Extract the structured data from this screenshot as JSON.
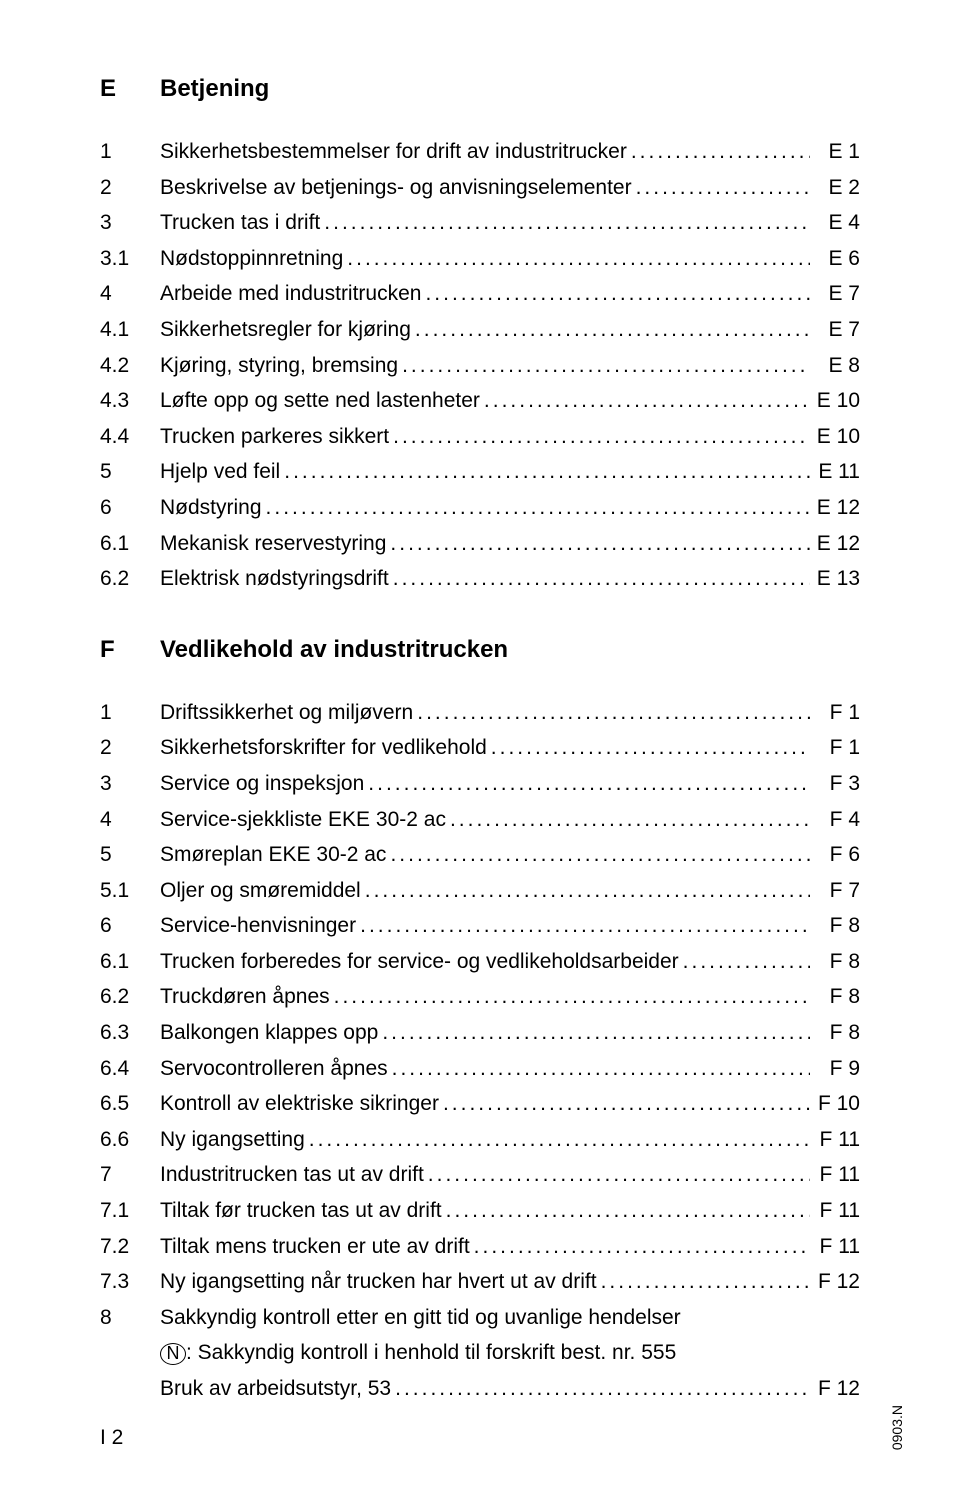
{
  "sections": [
    {
      "letter": "E",
      "title": "Betjening",
      "items": [
        {
          "num": "1",
          "text": "Sikkerhetsbestemmelser for drift av industritrucker",
          "page": "E 1"
        },
        {
          "num": "2",
          "text": "Beskrivelse av betjenings- og anvisningselementer",
          "page": "E 2"
        },
        {
          "num": "3",
          "text": "Trucken tas i drift",
          "page": "E 4"
        },
        {
          "num": "3.1",
          "text": "Nødstoppinnretning",
          "page": "E 6"
        },
        {
          "num": "4",
          "text": "Arbeide med industritrucken",
          "page": "E 7"
        },
        {
          "num": "4.1",
          "text": "Sikkerhetsregler for kjøring",
          "page": "E 7"
        },
        {
          "num": "4.2",
          "text": "Kjøring, styring, bremsing",
          "page": "E 8"
        },
        {
          "num": "4.3",
          "text": "Løfte opp og sette ned lastenheter",
          "page": "E 10"
        },
        {
          "num": "4.4",
          "text": "Trucken parkeres sikkert",
          "page": "E 10"
        },
        {
          "num": "5",
          "text": "Hjelp ved feil",
          "page": "E 11"
        },
        {
          "num": "6",
          "text": "Nødstyring",
          "page": "E 12"
        },
        {
          "num": "6.1",
          "text": "Mekanisk reservestyring",
          "page": "E 12"
        },
        {
          "num": "6.2",
          "text": "Elektrisk nødstyringsdrift",
          "page": "E 13"
        }
      ]
    },
    {
      "letter": "F",
      "title": "Vedlikehold av industritrucken",
      "items": [
        {
          "num": "1",
          "text": "Driftssikkerhet og miljøvern",
          "page": "F 1"
        },
        {
          "num": "2",
          "text": "Sikkerhetsforskrifter for vedlikehold",
          "page": "F 1"
        },
        {
          "num": "3",
          "text": "Service og inspeksjon",
          "page": "F 3"
        },
        {
          "num": "4",
          "text": "Service-sjekkliste EKE 30-2 ac",
          "page": "F 4"
        },
        {
          "num": "5",
          "text": "Smøreplan EKE 30-2 ac",
          "page": "F 6"
        },
        {
          "num": "5.1",
          "text": "Oljer og smøremiddel",
          "page": "F 7"
        },
        {
          "num": "6",
          "text": "Service-henvisninger",
          "page": "F 8"
        },
        {
          "num": "6.1",
          "text": "Trucken forberedes for service- og vedlikeholdsarbeider",
          "page": "F 8"
        },
        {
          "num": "6.2",
          "text": "Truckdøren åpnes",
          "page": "F 8"
        },
        {
          "num": "6.3",
          "text": "Balkongen klappes opp",
          "page": "F 8"
        },
        {
          "num": "6.4",
          "text": "Servocontrolleren åpnes",
          "page": "F 9"
        },
        {
          "num": "6.5",
          "text": "Kontroll av elektriske sikringer",
          "page": "F 10"
        },
        {
          "num": "6.6",
          "text": "Ny igangsetting",
          "page": "F 11"
        },
        {
          "num": "7",
          "text": "Industritrucken tas ut av drift",
          "page": "F 11"
        },
        {
          "num": "7.1",
          "text": "Tiltak før trucken tas ut av drift",
          "page": "F 11"
        },
        {
          "num": "7.2",
          "text": "Tiltak mens trucken er ute av drift",
          "page": "F 11"
        },
        {
          "num": "7.3",
          "text": "Ny igangsetting når trucken har hvert ut av drift",
          "page": "F 12"
        }
      ],
      "special_item": {
        "num": "8",
        "line1": "Sakkyndig kontroll etter en gitt tid og uvanlige hendelser",
        "circled": "N",
        "line2_after": ": Sakkyndig kontroll i henhold til forskrift best. nr. 555",
        "line3": "Bruk av arbeidsutstyr, 53",
        "page": "F 12"
      }
    }
  ],
  "footer": {
    "page_num": "I 2",
    "doc_ref": "0903.N"
  }
}
